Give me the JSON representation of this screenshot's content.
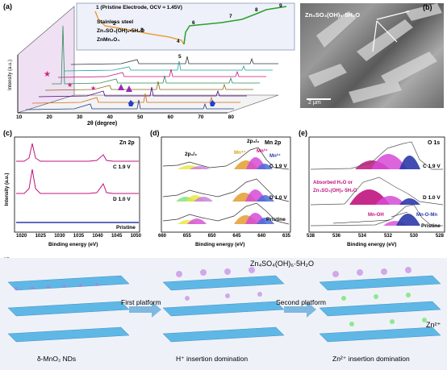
{
  "panel_labels": {
    "a": "(a)",
    "b": "(b)",
    "c": "(c)",
    "d": "(d)",
    "e": "(e)",
    "f": "(f)"
  },
  "panel_a": {
    "ylabel": "Intensity (a.u.)",
    "xlabel": "2θ (degree)",
    "xticks": [
      "10",
      "20",
      "30",
      "40",
      "50",
      "60",
      "70",
      "80"
    ],
    "legend": [
      "Stainless steel",
      "Zn₄SO₄(OH)₆•5H₂O",
      "ZnMn₂O₄"
    ],
    "inset_title": "1 (Pristine Electrode, OCV ≈ 1.45V)",
    "inset_points": [
      "2",
      "3",
      "4",
      "5",
      "6",
      "7",
      "8",
      "9"
    ]
  },
  "panel_b": {
    "label": "Zn₄SO₄(OH)₆·5H₂O",
    "scale": "2 μm"
  },
  "panel_c": {
    "title": "Zn 2p",
    "ylabel": "Intensity (a.u.)",
    "xlabel": "Binding energy (eV)",
    "xticks": [
      "1020",
      "1025",
      "1030",
      "1035",
      "1040",
      "1045",
      "1050"
    ],
    "curves": [
      "C 1.9 V",
      "D 1.0 V",
      "Pristine"
    ]
  },
  "panel_d": {
    "title": "Mn 2p",
    "xlabel": "Binding energy (eV)",
    "xticks": [
      "660",
      "655",
      "650",
      "645",
      "640",
      "635"
    ],
    "peaks": [
      "2p₁/₂",
      "2p₃/₂",
      "Mn⁴⁺",
      "Mn³⁺",
      "Mn²⁺"
    ],
    "curves": [
      "C 1.9 V",
      "D 1.0 V",
      "Pristine"
    ]
  },
  "panel_e": {
    "title": "O 1s",
    "xlabel": "Binding energy (eV)",
    "xticks": [
      "538",
      "536",
      "534",
      "532",
      "530",
      "528"
    ],
    "annot1": "Absorbed H₂O or",
    "annot2": "Zn₄SO₄(OH)₆·5H₂O",
    "annot_mnoh": "Mn-OH",
    "annot_mnomn": "Mn-O-Mn",
    "curves": [
      "C 1.9 V",
      "D 1.0 V",
      "Pristine"
    ]
  },
  "panel_f": {
    "first_platform": "First platform",
    "second_platform": "Second platform",
    "zso_label": "Zn₄SO₄(OH)₆·5H₂O",
    "zn_label": "Zn²⁺",
    "cap1": "δ-MnO₂ NDs",
    "cap2": "H⁺ insertion domination",
    "cap3": "Zn²⁺ insertion domination"
  },
  "colors": {
    "zn_curve": "#c0147e",
    "pristine": "#2c3aa8",
    "green": "#2aa02a",
    "bg_f": "#eaf0f7"
  }
}
